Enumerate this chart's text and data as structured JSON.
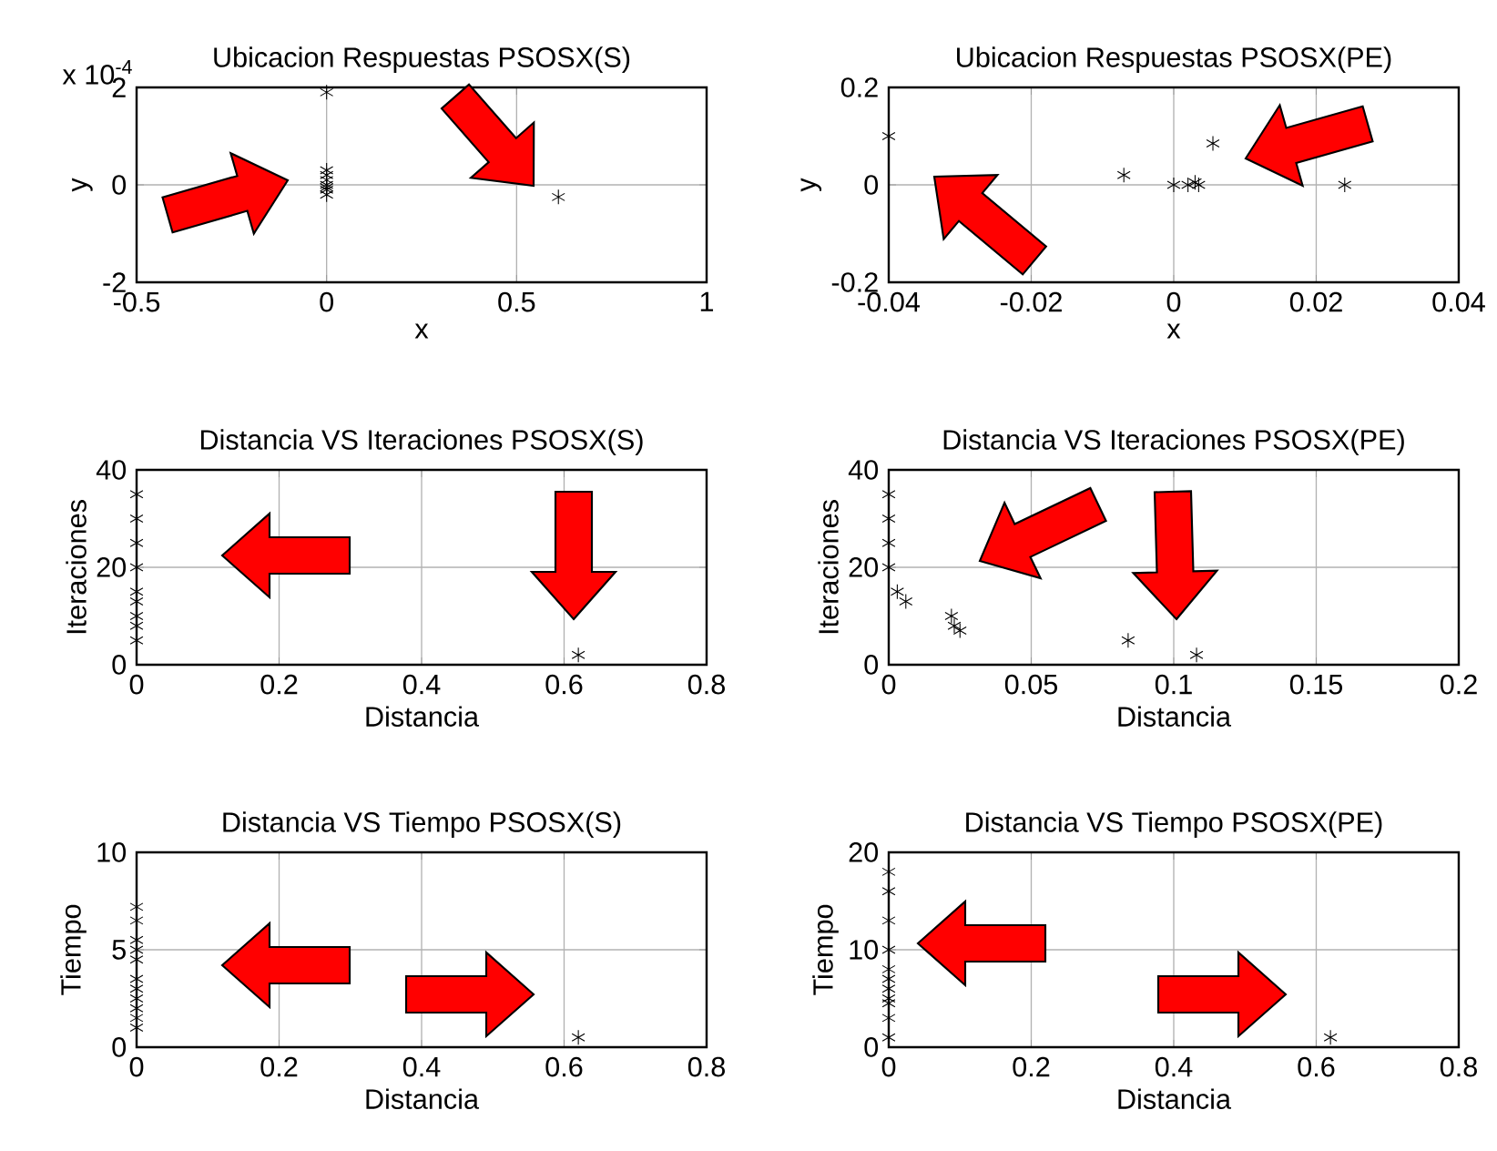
{
  "chart_data": [
    {
      "type": "scatter",
      "title": "Ubicacion Respuestas PSOSX(S)",
      "xlabel": "x",
      "ylabel": "y",
      "annotations": [
        "x 10$^{-4}$"
      ],
      "x": [
        0,
        0,
        0,
        0,
        0,
        0,
        0,
        0,
        0.61
      ],
      "values": [
        1.9,
        0.3,
        0.2,
        0.1,
        0,
        -0.05,
        -0.1,
        -0.2,
        -0.25
      ],
      "color": "#000000",
      "marker": "cross",
      "xlim": [
        -0.5,
        1
      ],
      "ylim": [
        -2,
        2
      ],
      "xticks": [
        -0.5,
        0,
        0.5,
        1
      ],
      "yticks": [
        -2,
        0,
        2
      ],
      "grid": true
    },
    {
      "type": "scatter",
      "title": "Ubicacion Respuestas PSOSX(PE)",
      "xlabel": "x",
      "ylabel": "y",
      "x": [
        -0.04,
        -0.007,
        0,
        0.002,
        0.003,
        0.0035,
        0.0055,
        0.024
      ],
      "values": [
        0.1,
        0.02,
        0,
        0,
        0.005,
        0,
        0.085,
        0
      ],
      "color": "#000000",
      "marker": "cross",
      "xlim": [
        -0.04,
        0.04
      ],
      "ylim": [
        -0.2,
        0.2
      ],
      "xticks": [
        -0.04,
        -0.02,
        0,
        0.02,
        0.04
      ],
      "yticks": [
        -0.2,
        0,
        0.2
      ],
      "grid": true
    },
    {
      "type": "scatter",
      "title": "Distancia VS Iteraciones PSOSX(S)",
      "xlabel": "Distancia",
      "ylabel": "Iteraciones",
      "x": [
        0,
        0,
        0,
        0,
        0,
        0,
        0,
        0,
        0,
        0.62
      ],
      "values": [
        35,
        30,
        25,
        20,
        15,
        13,
        10,
        8,
        5,
        2
      ],
      "color": "#000000",
      "marker": "cross",
      "xlim": [
        0,
        0.8
      ],
      "ylim": [
        0,
        40
      ],
      "xticks": [
        0,
        0.2,
        0.4,
        0.6,
        0.8
      ],
      "yticks": [
        0,
        20,
        40
      ],
      "grid": true
    },
    {
      "type": "scatter",
      "title": "Distancia VS Iteraciones PSOSX(PE)",
      "xlabel": "Distancia",
      "ylabel": "Iteraciones",
      "x": [
        0,
        0,
        0,
        0,
        0.003,
        0.006,
        0.022,
        0.023,
        0.025,
        0.084,
        0.108
      ],
      "values": [
        35,
        30,
        25,
        20,
        15,
        13,
        10,
        8,
        7,
        5,
        2
      ],
      "color": "#000000",
      "marker": "cross",
      "xlim": [
        0,
        0.2
      ],
      "ylim": [
        0,
        40
      ],
      "xticks": [
        0,
        0.05,
        0.1,
        0.15,
        0.2
      ],
      "yticks": [
        0,
        20,
        40
      ],
      "grid": true
    },
    {
      "type": "scatter",
      "title": "Distancia VS Tiempo PSOSX(S)",
      "xlabel": "Distancia",
      "ylabel": "Tiempo",
      "x": [
        0,
        0,
        0,
        0,
        0,
        0,
        0,
        0,
        0,
        0,
        0,
        0.62
      ],
      "values": [
        7.2,
        6.5,
        5.5,
        5,
        4.5,
        3.5,
        3,
        2.5,
        2,
        1.5,
        1,
        0.5
      ],
      "color": "#000000",
      "marker": "cross",
      "xlim": [
        0,
        0.8
      ],
      "ylim": [
        0,
        10
      ],
      "xticks": [
        0,
        0.2,
        0.4,
        0.6,
        0.8
      ],
      "yticks": [
        0,
        5,
        10
      ],
      "grid": true
    },
    {
      "type": "scatter",
      "title": "Distancia VS Tiempo PSOSX(PE)",
      "xlabel": "Distancia",
      "ylabel": "Tiempo",
      "x": [
        0,
        0,
        0,
        0,
        0,
        0,
        0,
        0,
        0,
        0,
        0,
        0.62
      ],
      "values": [
        18,
        16,
        13,
        10,
        8,
        7,
        6,
        5,
        4.5,
        3,
        1,
        1
      ],
      "color": "#000000",
      "marker": "cross",
      "xlim": [
        0,
        0.8
      ],
      "ylim": [
        0,
        20
      ],
      "xticks": [
        0,
        0.2,
        0.4,
        0.6,
        0.8
      ],
      "yticks": [
        0,
        10,
        20
      ],
      "grid": true
    }
  ]
}
